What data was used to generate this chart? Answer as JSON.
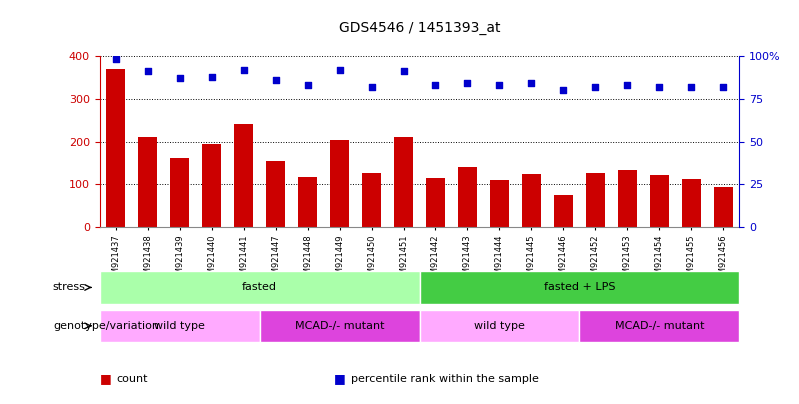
{
  "title": "GDS4546 / 1451393_at",
  "samples": [
    "GSM921437",
    "GSM921438",
    "GSM921439",
    "GSM921440",
    "GSM921441",
    "GSM921447",
    "GSM921448",
    "GSM921449",
    "GSM921450",
    "GSM921451",
    "GSM921442",
    "GSM921443",
    "GSM921444",
    "GSM921445",
    "GSM921446",
    "GSM921452",
    "GSM921453",
    "GSM921454",
    "GSM921455",
    "GSM921456"
  ],
  "bar_values": [
    370,
    210,
    162,
    195,
    242,
    155,
    118,
    204,
    127,
    210,
    115,
    140,
    110,
    125,
    75,
    127,
    133,
    122,
    112,
    93
  ],
  "dot_values": [
    98,
    91,
    87,
    88,
    92,
    86,
    83,
    92,
    82,
    91,
    83,
    84,
    83,
    84,
    80,
    82,
    83,
    82,
    82,
    82
  ],
  "bar_color": "#cc0000",
  "dot_color": "#0000cc",
  "left_ylim": [
    0,
    400
  ],
  "right_ylim": [
    0,
    100
  ],
  "left_yticks": [
    0,
    100,
    200,
    300,
    400
  ],
  "right_yticks": [
    0,
    25,
    50,
    75,
    100
  ],
  "right_yticklabels": [
    "0",
    "25",
    "50",
    "75",
    "100%"
  ],
  "stress_labels": [
    {
      "text": "fasted",
      "start": 0,
      "end": 10,
      "color": "#aaffaa"
    },
    {
      "text": "fasted + LPS",
      "start": 10,
      "end": 20,
      "color": "#44cc44"
    }
  ],
  "genotype_labels": [
    {
      "text": "wild type",
      "start": 0,
      "end": 5,
      "color": "#ffaaff"
    },
    {
      "text": "MCAD-/- mutant",
      "start": 5,
      "end": 10,
      "color": "#dd44dd"
    },
    {
      "text": "wild type",
      "start": 10,
      "end": 15,
      "color": "#ffaaff"
    },
    {
      "text": "MCAD-/- mutant",
      "start": 15,
      "end": 20,
      "color": "#dd44dd"
    }
  ],
  "legend_items": [
    {
      "color": "#cc0000",
      "label": "count"
    },
    {
      "color": "#0000cc",
      "label": "percentile rank within the sample"
    }
  ],
  "background_color": "#ffffff"
}
